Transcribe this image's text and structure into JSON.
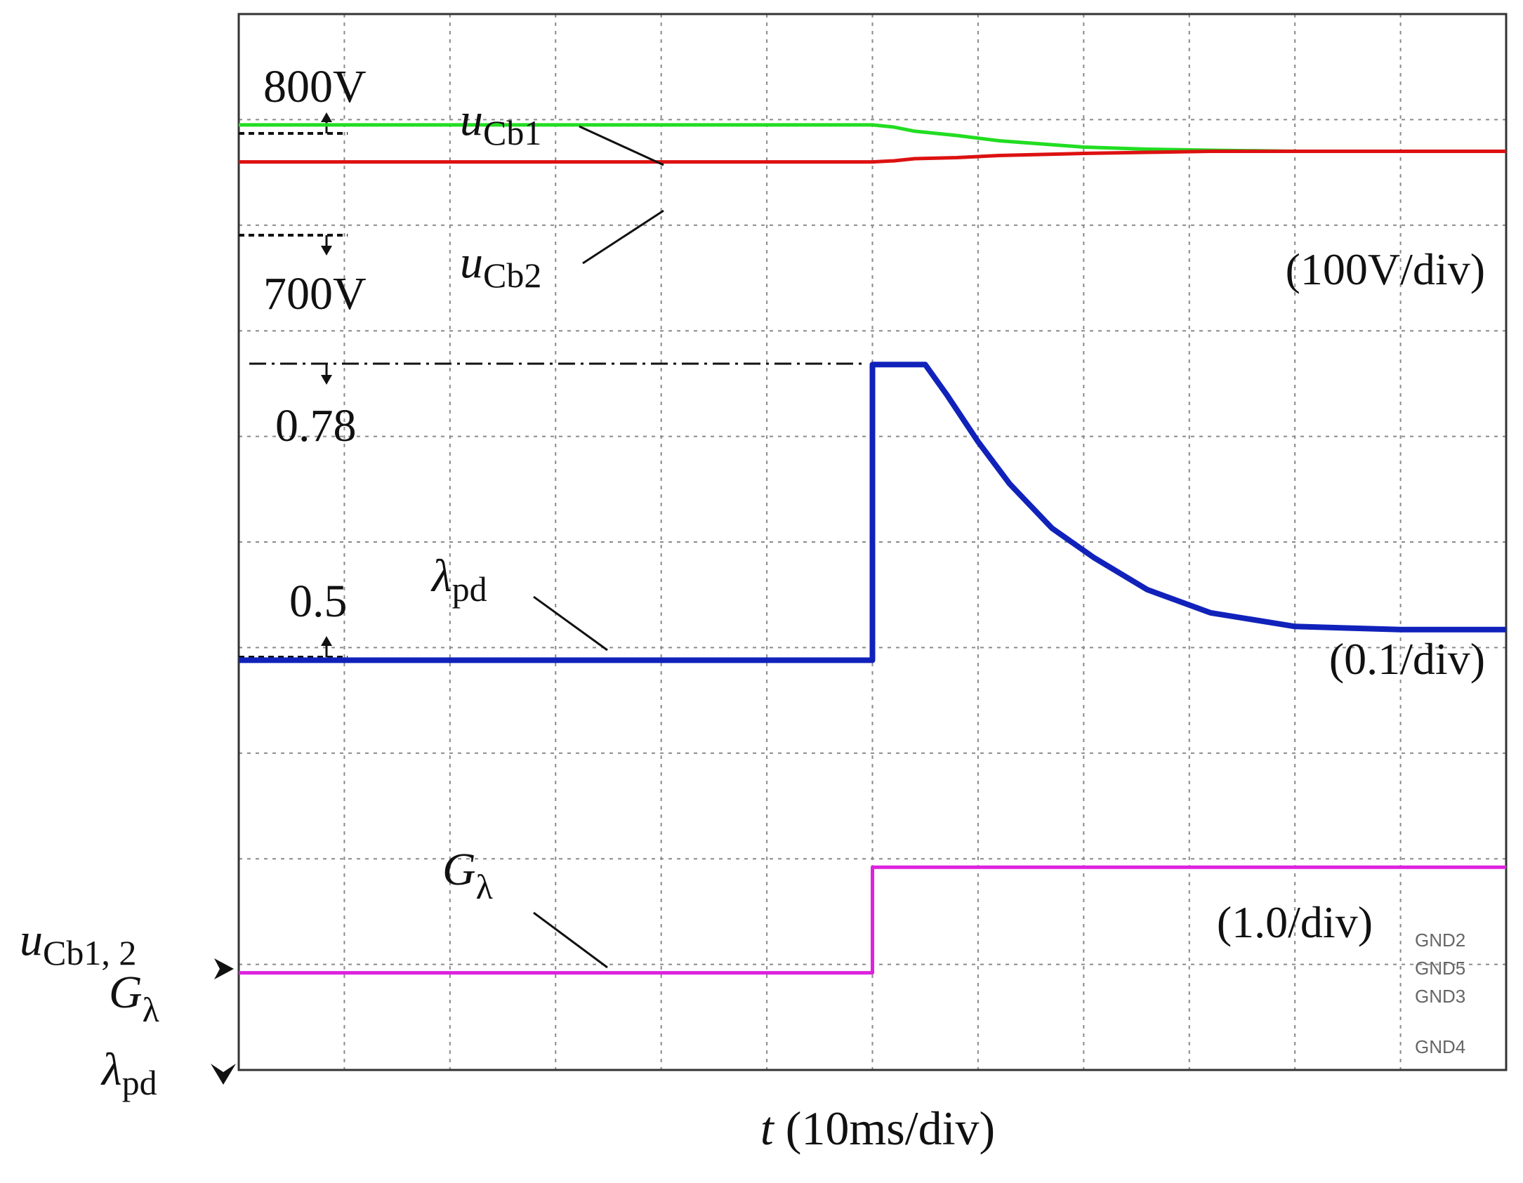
{
  "chart_data": {
    "type": "line",
    "title": "",
    "xlabel": "t (10ms/div)",
    "x_axis": {
      "var": "t",
      "unit": "(10ms/div)",
      "divisions": 12,
      "range": [
        0,
        120
      ]
    },
    "y_divisions": 10,
    "grid": true,
    "series": [
      {
        "name": "uCb1",
        "sym": "u",
        "sub": "Cb1",
        "color": "#22dd22",
        "x": [
          0,
          60,
          62,
          64,
          68,
          72,
          76,
          80,
          86,
          92,
          100,
          110,
          120
        ],
        "y": [
          8.95,
          8.95,
          8.93,
          8.89,
          8.85,
          8.8,
          8.77,
          8.74,
          8.72,
          8.71,
          8.7,
          8.7,
          8.7
        ]
      },
      {
        "name": "uCb2",
        "sym": "u",
        "sub": "Cb2",
        "color": "#dd1111",
        "x": [
          0,
          60,
          62,
          64,
          68,
          72,
          76,
          80,
          86,
          92,
          100,
          110,
          120
        ],
        "y": [
          8.6,
          8.6,
          8.61,
          8.63,
          8.64,
          8.66,
          8.67,
          8.68,
          8.69,
          8.7,
          8.7,
          8.7,
          8.7
        ]
      },
      {
        "name": "λpd",
        "sym": "λ",
        "sub": "pd",
        "color": "#1122bb",
        "x": [
          0,
          60,
          60,
          65,
          67,
          70,
          73,
          77,
          81,
          86,
          92,
          100,
          110,
          120
        ],
        "y": [
          3.88,
          3.88,
          6.68,
          6.68,
          6.4,
          5.95,
          5.55,
          5.13,
          4.85,
          4.55,
          4.33,
          4.2,
          4.17,
          4.17
        ]
      },
      {
        "name": "Gλ",
        "sym": "G",
        "sub": "λ",
        "color": "#dd22dd",
        "x": [
          0,
          60,
          60,
          120
        ],
        "y": [
          0.92,
          0.92,
          1.92,
          1.92
        ]
      }
    ],
    "markers": [
      {
        "text": "800V",
        "style": "dotted",
        "arrow": "up"
      },
      {
        "text": "700V",
        "style": "dotted",
        "arrow": "down"
      },
      {
        "text": "0.78",
        "style": "dashdot",
        "arrow": "down"
      },
      {
        "text": "0.5",
        "style": "dotted",
        "arrow": "up"
      }
    ],
    "scales": [
      "(100V/div)",
      "(0.1/div)",
      "(1.0/div)"
    ],
    "ground_labels": [
      "GND2",
      "GND5",
      "GND3",
      "GND4"
    ],
    "channel_refs": [
      {
        "sym": "u",
        "sub": "Cb1, 2"
      },
      {
        "sym": "G",
        "sub": "λ"
      },
      {
        "sym": "λ",
        "sub": "pd"
      }
    ]
  }
}
